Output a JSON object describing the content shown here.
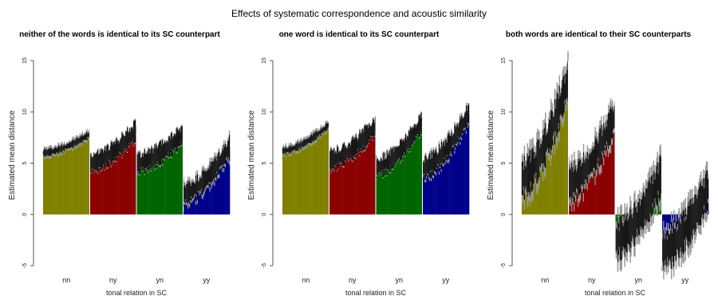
{
  "main_title": "Effects of systematic correspondence and acoustic similarity",
  "colors": {
    "nn": "#808000",
    "ny": "#8b0000",
    "yn": "#006400",
    "yy": "#00008b",
    "ci_outer": "#9a9a9a",
    "ci_inner": "#000000"
  },
  "chart_data": [
    {
      "type": "bar",
      "title": "neither of the words is identical to its SC counterpart",
      "xlabel": "tonal relation in SC",
      "ylabel": "Estimated mean distance",
      "ylim": [
        -5,
        15
      ],
      "yticks": [
        "-5",
        "0",
        "5",
        "10",
        "15"
      ],
      "categories": [
        "nn",
        "ny",
        "yn",
        "yy"
      ],
      "series": [
        {
          "category": "nn",
          "range": [
            6.0,
            7.8
          ],
          "ci": [
            0.5,
            0.3
          ]
        },
        {
          "category": "ny",
          "range": [
            5.0,
            8.2
          ],
          "ci": [
            0.9,
            0.8
          ]
        },
        {
          "category": "yn",
          "range": [
            5.0,
            7.8
          ],
          "ci": [
            0.9,
            0.8
          ]
        },
        {
          "category": "yy",
          "range": [
            2.0,
            6.5
          ],
          "ci": [
            1.2,
            0.9
          ]
        }
      ]
    },
    {
      "type": "bar",
      "title": "one word is identical to its SC counterpart",
      "xlabel": "tonal relation in SC",
      "ylabel": "Estimated mean distance",
      "ylim": [
        -5,
        15
      ],
      "yticks": [
        "-5",
        "0",
        "5",
        "10",
        "15"
      ],
      "categories": [
        "nn",
        "ny",
        "yn",
        "yy"
      ],
      "series": [
        {
          "category": "nn",
          "range": [
            6.2,
            8.7
          ],
          "ci": [
            0.5,
            0.3
          ]
        },
        {
          "category": "ny",
          "range": [
            5.3,
            8.6
          ],
          "ci": [
            0.9,
            0.8
          ]
        },
        {
          "category": "yn",
          "range": [
            4.6,
            9.0
          ],
          "ci": [
            0.9,
            0.8
          ]
        },
        {
          "category": "yy",
          "range": [
            4.5,
            9.8
          ],
          "ci": [
            1.1,
            0.9
          ]
        }
      ]
    },
    {
      "type": "bar",
      "title": "both words are identical to their SC counterparts",
      "xlabel": "tonal relation in SC",
      "ylabel": "Estimated mean distance",
      "ylim": [
        -5,
        15
      ],
      "yticks": [
        "-5",
        "0",
        "5",
        "10",
        "15"
      ],
      "categories": [
        "nn",
        "ny",
        "yn",
        "yy"
      ],
      "series": [
        {
          "category": "nn",
          "range": [
            3.5,
            13.0
          ],
          "ci": [
            2.2,
            1.5
          ]
        },
        {
          "category": "ny",
          "range": [
            3.0,
            9.5
          ],
          "ci": [
            2.0,
            1.4
          ]
        },
        {
          "category": "yn",
          "range": [
            -2.5,
            3.8
          ],
          "ci": [
            2.2,
            1.5
          ]
        },
        {
          "category": "yy",
          "range": [
            -3.5,
            2.5
          ],
          "ci": [
            2.3,
            1.6
          ]
        }
      ]
    }
  ]
}
